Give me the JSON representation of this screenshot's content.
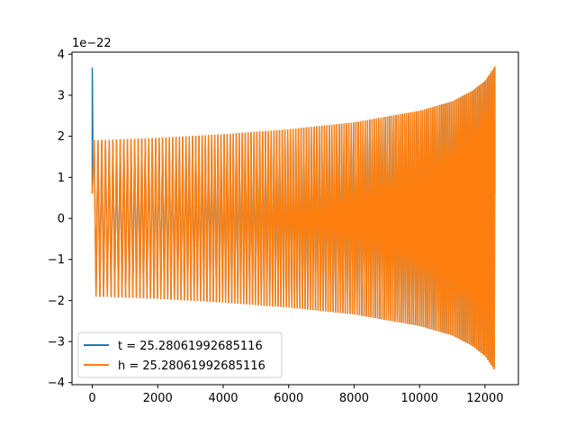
{
  "chart_data": {
    "type": "line",
    "title": "",
    "xlabel": "",
    "ylabel": "",
    "y_offset_text": "1e−22",
    "xlim": [
      -620,
      13020
    ],
    "ylim": [
      -4.05,
      4.05
    ],
    "x_ticks": [
      0,
      2000,
      4000,
      6000,
      8000,
      10000,
      12000
    ],
    "x_tick_labels": [
      "0",
      "2000",
      "4000",
      "6000",
      "8000",
      "10000",
      "12000"
    ],
    "y_ticks": [
      -4,
      -3,
      -2,
      -1,
      0,
      1,
      2,
      3,
      4
    ],
    "y_tick_labels": [
      "−4",
      "−3",
      "−2",
      "−1",
      "0",
      "1",
      "2",
      "3",
      "4"
    ],
    "grid": false,
    "legend_placement": "lower-left",
    "envelope": {
      "description_values": "amplitude envelope (units of 1e-22) vs sample index",
      "x": [
        0,
        2000,
        4000,
        6000,
        8000,
        10000,
        11000,
        11600,
        12000,
        12300
      ],
      "amplitude": [
        1.9,
        1.96,
        2.05,
        2.17,
        2.34,
        2.62,
        2.85,
        3.1,
        3.35,
        3.7
      ]
    },
    "series": [
      {
        "name": "t = 25.28061992685116",
        "color": "#1f77b4",
        "x_range": [
          0,
          12300
        ],
        "start_spike": {
          "x": 0,
          "y_max": 3.67,
          "y_min": 0.62
        }
      },
      {
        "name": "h = 25.28061992685116",
        "color": "#ff7f0e",
        "x_range": [
          0,
          12300
        ]
      }
    ]
  }
}
